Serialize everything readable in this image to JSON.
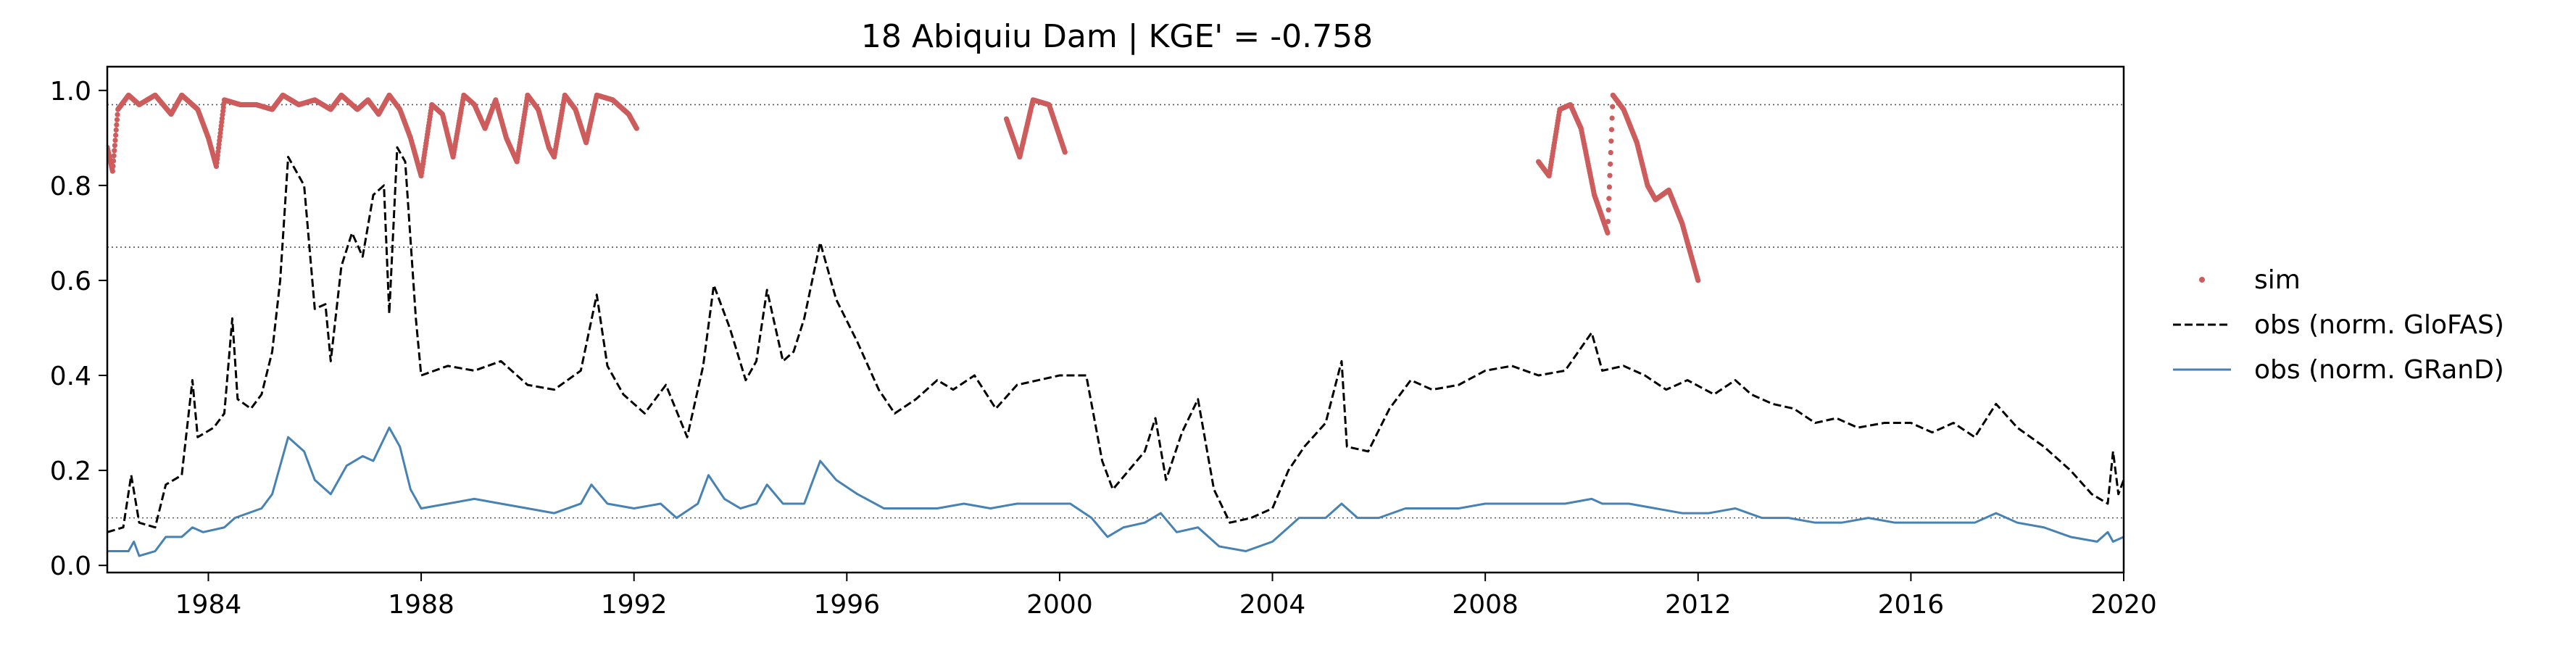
{
  "chart_data": {
    "type": "line",
    "title": "18  Abiquiu Dam | KGE' = -0.758",
    "xlabel": "",
    "ylabel": "",
    "xlim": [
      1982.1,
      2020.0
    ],
    "ylim": [
      -0.015,
      1.05
    ],
    "x_ticks": [
      1984,
      1988,
      1992,
      1996,
      2000,
      2004,
      2008,
      2012,
      2016,
      2020
    ],
    "y_ticks": [
      0.0,
      0.2,
      0.4,
      0.6,
      0.8,
      1.0
    ],
    "x_tick_labels": [
      "1984",
      "1988",
      "1992",
      "1996",
      "2000",
      "2004",
      "2008",
      "2012",
      "2016",
      "2020"
    ],
    "y_tick_labels": [
      "0.0",
      "0.2",
      "0.4",
      "0.6",
      "0.8",
      "1.0"
    ],
    "reference_lines_y": [
      0.97,
      0.67,
      0.1
    ],
    "grid": false,
    "legend_position": "right, outside plot",
    "colors": {
      "sim": "#cd5c5c",
      "glofas": "#000000",
      "grand": "#4682b4",
      "ref": "#555555"
    },
    "series": [
      {
        "name": "sim",
        "style": "points",
        "segments": [
          [
            [
              1982.1,
              0.88
            ],
            [
              1982.2,
              0.83
            ],
            [
              1982.3,
              0.96
            ],
            [
              1982.5,
              0.99
            ],
            [
              1982.7,
              0.97
            ],
            [
              1983.0,
              0.99
            ],
            [
              1983.3,
              0.95
            ],
            [
              1983.5,
              0.99
            ],
            [
              1983.8,
              0.96
            ],
            [
              1984.0,
              0.9
            ],
            [
              1984.15,
              0.84
            ],
            [
              1984.3,
              0.98
            ],
            [
              1984.6,
              0.97
            ],
            [
              1984.9,
              0.97
            ],
            [
              1985.2,
              0.96
            ],
            [
              1985.4,
              0.99
            ],
            [
              1985.7,
              0.97
            ],
            [
              1986.0,
              0.98
            ],
            [
              1986.3,
              0.96
            ],
            [
              1986.5,
              0.99
            ],
            [
              1986.8,
              0.96
            ],
            [
              1987.0,
              0.98
            ],
            [
              1987.2,
              0.95
            ],
            [
              1987.4,
              0.99
            ],
            [
              1987.6,
              0.96
            ],
            [
              1987.8,
              0.9
            ],
            [
              1988.0,
              0.82
            ],
            [
              1988.2,
              0.97
            ],
            [
              1988.4,
              0.95
            ],
            [
              1988.6,
              0.86
            ],
            [
              1988.8,
              0.99
            ],
            [
              1989.0,
              0.97
            ],
            [
              1989.2,
              0.92
            ],
            [
              1989.4,
              0.98
            ],
            [
              1989.6,
              0.9
            ],
            [
              1989.8,
              0.85
            ],
            [
              1990.0,
              0.99
            ],
            [
              1990.2,
              0.96
            ],
            [
              1990.4,
              0.88
            ],
            [
              1990.5,
              0.86
            ],
            [
              1990.7,
              0.99
            ],
            [
              1990.9,
              0.96
            ],
            [
              1991.1,
              0.89
            ],
            [
              1991.3,
              0.99
            ],
            [
              1991.6,
              0.98
            ],
            [
              1991.9,
              0.95
            ],
            [
              1992.05,
              0.92
            ]
          ],
          [
            [
              1999.0,
              0.94
            ],
            [
              1999.25,
              0.86
            ],
            [
              1999.5,
              0.98
            ],
            [
              1999.8,
              0.97
            ],
            [
              2000.1,
              0.87
            ]
          ],
          [
            [
              2009.0,
              0.85
            ],
            [
              2009.2,
              0.82
            ],
            [
              2009.4,
              0.96
            ],
            [
              2009.6,
              0.97
            ],
            [
              2009.8,
              0.92
            ],
            [
              2010.05,
              0.78
            ],
            [
              2010.3,
              0.7
            ],
            [
              2010.4,
              0.99
            ],
            [
              2010.6,
              0.96
            ],
            [
              2010.85,
              0.89
            ],
            [
              2011.05,
              0.8
            ],
            [
              2011.2,
              0.77
            ],
            [
              2011.45,
              0.79
            ],
            [
              2011.7,
              0.72
            ],
            [
              2011.85,
              0.66
            ],
            [
              2012.0,
              0.6
            ]
          ]
        ]
      },
      {
        "name": "obs (norm. GloFAS)",
        "style": "dashed",
        "points": [
          [
            1982.1,
            0.07
          ],
          [
            1982.4,
            0.08
          ],
          [
            1982.55,
            0.19
          ],
          [
            1982.7,
            0.09
          ],
          [
            1983.0,
            0.08
          ],
          [
            1983.2,
            0.17
          ],
          [
            1983.5,
            0.19
          ],
          [
            1983.7,
            0.39
          ],
          [
            1983.8,
            0.27
          ],
          [
            1984.1,
            0.29
          ],
          [
            1984.3,
            0.32
          ],
          [
            1984.45,
            0.52
          ],
          [
            1984.55,
            0.35
          ],
          [
            1984.8,
            0.33
          ],
          [
            1985.0,
            0.36
          ],
          [
            1985.2,
            0.45
          ],
          [
            1985.35,
            0.6
          ],
          [
            1985.5,
            0.86
          ],
          [
            1985.8,
            0.8
          ],
          [
            1986.0,
            0.54
          ],
          [
            1986.2,
            0.55
          ],
          [
            1986.3,
            0.43
          ],
          [
            1986.5,
            0.63
          ],
          [
            1986.7,
            0.7
          ],
          [
            1986.9,
            0.65
          ],
          [
            1987.1,
            0.78
          ],
          [
            1987.3,
            0.8
          ],
          [
            1987.4,
            0.53
          ],
          [
            1987.55,
            0.88
          ],
          [
            1987.7,
            0.85
          ],
          [
            1987.9,
            0.52
          ],
          [
            1988.0,
            0.4
          ],
          [
            1988.5,
            0.42
          ],
          [
            1989.0,
            0.41
          ],
          [
            1989.5,
            0.43
          ],
          [
            1990.0,
            0.38
          ],
          [
            1990.5,
            0.37
          ],
          [
            1991.0,
            0.41
          ],
          [
            1991.3,
            0.57
          ],
          [
            1991.5,
            0.42
          ],
          [
            1991.8,
            0.36
          ],
          [
            1992.2,
            0.32
          ],
          [
            1992.6,
            0.38
          ],
          [
            1993.0,
            0.27
          ],
          [
            1993.3,
            0.42
          ],
          [
            1993.5,
            0.59
          ],
          [
            1993.8,
            0.5
          ],
          [
            1994.1,
            0.39
          ],
          [
            1994.3,
            0.43
          ],
          [
            1994.5,
            0.58
          ],
          [
            1994.8,
            0.43
          ],
          [
            1995.0,
            0.45
          ],
          [
            1995.2,
            0.52
          ],
          [
            1995.5,
            0.68
          ],
          [
            1995.8,
            0.56
          ],
          [
            1996.2,
            0.47
          ],
          [
            1996.6,
            0.37
          ],
          [
            1996.9,
            0.32
          ],
          [
            1997.3,
            0.35
          ],
          [
            1997.7,
            0.39
          ],
          [
            1998.0,
            0.37
          ],
          [
            1998.4,
            0.4
          ],
          [
            1998.8,
            0.33
          ],
          [
            1999.2,
            0.38
          ],
          [
            1999.6,
            0.39
          ],
          [
            2000.0,
            0.4
          ],
          [
            2000.5,
            0.4
          ],
          [
            2000.8,
            0.22
          ],
          [
            2001.0,
            0.16
          ],
          [
            2001.3,
            0.2
          ],
          [
            2001.6,
            0.24
          ],
          [
            2001.8,
            0.31
          ],
          [
            2002.0,
            0.18
          ],
          [
            2002.3,
            0.28
          ],
          [
            2002.6,
            0.35
          ],
          [
            2002.9,
            0.16
          ],
          [
            2003.2,
            0.09
          ],
          [
            2003.6,
            0.1
          ],
          [
            2004.0,
            0.12
          ],
          [
            2004.3,
            0.2
          ],
          [
            2004.6,
            0.25
          ],
          [
            2005.0,
            0.3
          ],
          [
            2005.3,
            0.43
          ],
          [
            2005.4,
            0.25
          ],
          [
            2005.8,
            0.24
          ],
          [
            2006.2,
            0.33
          ],
          [
            2006.6,
            0.39
          ],
          [
            2007.0,
            0.37
          ],
          [
            2007.5,
            0.38
          ],
          [
            2008.0,
            0.41
          ],
          [
            2008.5,
            0.42
          ],
          [
            2009.0,
            0.4
          ],
          [
            2009.5,
            0.41
          ],
          [
            2010.0,
            0.49
          ],
          [
            2010.2,
            0.41
          ],
          [
            2010.6,
            0.42
          ],
          [
            2011.0,
            0.4
          ],
          [
            2011.4,
            0.37
          ],
          [
            2011.8,
            0.39
          ],
          [
            2012.3,
            0.36
          ],
          [
            2012.7,
            0.39
          ],
          [
            2013.0,
            0.36
          ],
          [
            2013.4,
            0.34
          ],
          [
            2013.8,
            0.33
          ],
          [
            2014.2,
            0.3
          ],
          [
            2014.6,
            0.31
          ],
          [
            2015.0,
            0.29
          ],
          [
            2015.5,
            0.3
          ],
          [
            2016.0,
            0.3
          ],
          [
            2016.4,
            0.28
          ],
          [
            2016.8,
            0.3
          ],
          [
            2017.2,
            0.27
          ],
          [
            2017.6,
            0.34
          ],
          [
            2018.0,
            0.29
          ],
          [
            2018.5,
            0.25
          ],
          [
            2019.0,
            0.2
          ],
          [
            2019.4,
            0.15
          ],
          [
            2019.7,
            0.13
          ],
          [
            2019.8,
            0.24
          ],
          [
            2019.9,
            0.15
          ],
          [
            2020.0,
            0.18
          ]
        ]
      },
      {
        "name": "obs (norm. GRanD)",
        "style": "solid",
        "points": [
          [
            1982.1,
            0.03
          ],
          [
            1982.5,
            0.03
          ],
          [
            1982.6,
            0.05
          ],
          [
            1982.7,
            0.02
          ],
          [
            1983.0,
            0.03
          ],
          [
            1983.2,
            0.06
          ],
          [
            1983.5,
            0.06
          ],
          [
            1983.7,
            0.08
          ],
          [
            1983.9,
            0.07
          ],
          [
            1984.3,
            0.08
          ],
          [
            1984.5,
            0.1
          ],
          [
            1985.0,
            0.12
          ],
          [
            1985.2,
            0.15
          ],
          [
            1985.5,
            0.27
          ],
          [
            1985.8,
            0.24
          ],
          [
            1986.0,
            0.18
          ],
          [
            1986.3,
            0.15
          ],
          [
            1986.6,
            0.21
          ],
          [
            1986.9,
            0.23
          ],
          [
            1987.1,
            0.22
          ],
          [
            1987.4,
            0.29
          ],
          [
            1987.6,
            0.25
          ],
          [
            1987.8,
            0.16
          ],
          [
            1988.0,
            0.12
          ],
          [
            1988.5,
            0.13
          ],
          [
            1989.0,
            0.14
          ],
          [
            1989.5,
            0.13
          ],
          [
            1990.0,
            0.12
          ],
          [
            1990.5,
            0.11
          ],
          [
            1991.0,
            0.13
          ],
          [
            1991.2,
            0.17
          ],
          [
            1991.5,
            0.13
          ],
          [
            1992.0,
            0.12
          ],
          [
            1992.5,
            0.13
          ],
          [
            1992.8,
            0.1
          ],
          [
            1993.2,
            0.13
          ],
          [
            1993.4,
            0.19
          ],
          [
            1993.7,
            0.14
          ],
          [
            1994.0,
            0.12
          ],
          [
            1994.3,
            0.13
          ],
          [
            1994.5,
            0.17
          ],
          [
            1994.8,
            0.13
          ],
          [
            1995.2,
            0.13
          ],
          [
            1995.5,
            0.22
          ],
          [
            1995.8,
            0.18
          ],
          [
            1996.2,
            0.15
          ],
          [
            1996.7,
            0.12
          ],
          [
            1997.2,
            0.12
          ],
          [
            1997.7,
            0.12
          ],
          [
            1998.2,
            0.13
          ],
          [
            1998.7,
            0.12
          ],
          [
            1999.2,
            0.13
          ],
          [
            1999.7,
            0.13
          ],
          [
            2000.2,
            0.13
          ],
          [
            2000.6,
            0.1
          ],
          [
            2000.9,
            0.06
          ],
          [
            2001.2,
            0.08
          ],
          [
            2001.6,
            0.09
          ],
          [
            2001.9,
            0.11
          ],
          [
            2002.2,
            0.07
          ],
          [
            2002.6,
            0.08
          ],
          [
            2003.0,
            0.04
          ],
          [
            2003.5,
            0.03
          ],
          [
            2004.0,
            0.05
          ],
          [
            2004.5,
            0.1
          ],
          [
            2005.0,
            0.1
          ],
          [
            2005.3,
            0.13
          ],
          [
            2005.6,
            0.1
          ],
          [
            2006.0,
            0.1
          ],
          [
            2006.5,
            0.12
          ],
          [
            2007.0,
            0.12
          ],
          [
            2007.5,
            0.12
          ],
          [
            2008.0,
            0.13
          ],
          [
            2008.5,
            0.13
          ],
          [
            2009.0,
            0.13
          ],
          [
            2009.5,
            0.13
          ],
          [
            2010.0,
            0.14
          ],
          [
            2010.2,
            0.13
          ],
          [
            2010.7,
            0.13
          ],
          [
            2011.2,
            0.12
          ],
          [
            2011.7,
            0.11
          ],
          [
            2012.2,
            0.11
          ],
          [
            2012.7,
            0.12
          ],
          [
            2013.2,
            0.1
          ],
          [
            2013.7,
            0.1
          ],
          [
            2014.2,
            0.09
          ],
          [
            2014.7,
            0.09
          ],
          [
            2015.2,
            0.1
          ],
          [
            2015.7,
            0.09
          ],
          [
            2016.2,
            0.09
          ],
          [
            2016.7,
            0.09
          ],
          [
            2017.2,
            0.09
          ],
          [
            2017.6,
            0.11
          ],
          [
            2018.0,
            0.09
          ],
          [
            2018.5,
            0.08
          ],
          [
            2019.0,
            0.06
          ],
          [
            2019.5,
            0.05
          ],
          [
            2019.7,
            0.07
          ],
          [
            2019.8,
            0.05
          ],
          [
            2020.0,
            0.06
          ]
        ]
      }
    ]
  }
}
